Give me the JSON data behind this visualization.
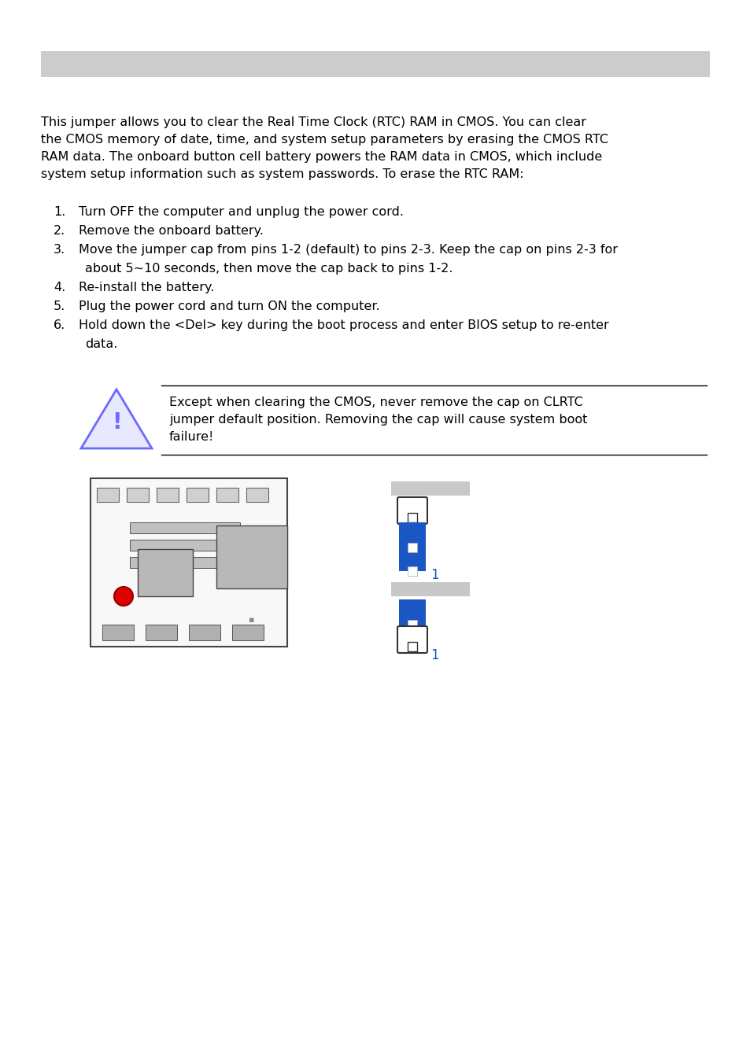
{
  "background_color": "#ffffff",
  "header_bar_color": "#cccccc",
  "blue_color": "#1a56c4",
  "gray_label_color": "#c8c8c8",
  "warning_triangle_color": "#6a6aff",
  "body_text_line1": "This jumper allows you to clear the Real Time Clock (RTC) RAM in CMOS. You can clear",
  "body_text_line2": "the CMOS memory of date, time, and system setup parameters by erasing the CMOS RTC",
  "body_text_line3": "RAM data. The onboard button cell battery powers the RAM data in CMOS, which include",
  "body_text_line4": "system setup information such as system passwords. To erase the RTC RAM:",
  "list_items": [
    "Turn OFF the computer and unplug the power cord.",
    "Remove the onboard battery.",
    "Move the jumper cap from pins 1-2 (default) to pins 2-3. Keep the cap on pins 2-3 for",
    "about 5~10 seconds, then move the cap back to pins 1-2.",
    "Re-install the battery.",
    "Plug the power cord and turn ON the computer.",
    "Hold down the <Del> key during the boot process and enter BIOS setup to re-enter",
    "data."
  ],
  "warning_line1": "Except when clearing the CMOS, never remove the cap on CLRTC",
  "warning_line2": "jumper default position. Removing the cap will cause system boot",
  "warning_line3": "failure!",
  "font_size": 11.5,
  "title_font_size": 13
}
